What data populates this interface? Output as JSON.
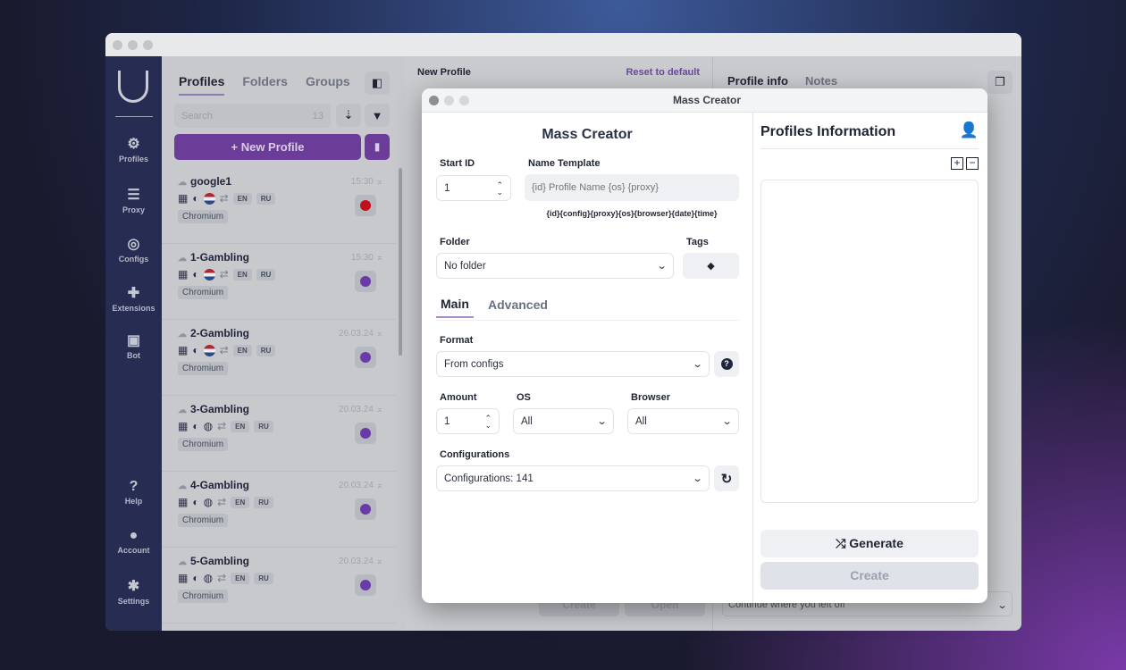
{
  "sidebar": {
    "items": [
      {
        "label": "Profiles",
        "icon": "users-gear-icon"
      },
      {
        "label": "Proxy",
        "icon": "server-icon"
      },
      {
        "label": "Configs",
        "icon": "fingerprint-icon"
      },
      {
        "label": "Extensions",
        "icon": "puzzle-icon"
      },
      {
        "label": "Bot",
        "icon": "robot-icon"
      }
    ],
    "bottom": [
      {
        "label": "Help",
        "icon": "question-icon"
      },
      {
        "label": "Account",
        "icon": "user-icon"
      },
      {
        "label": "Settings",
        "icon": "gear-icon"
      }
    ]
  },
  "list": {
    "tabs": [
      "Profiles",
      "Folders",
      "Groups"
    ],
    "search_placeholder": "Search",
    "count": "13",
    "new_profile": "+ New Profile",
    "profiles": [
      {
        "name": "google1",
        "date": "15:30",
        "langs": [
          "EN",
          "RU"
        ],
        "browser": "Chromium",
        "geo": "flag",
        "status": "running"
      },
      {
        "name": "1-Gambling",
        "date": "15:30",
        "langs": [
          "EN",
          "RU"
        ],
        "browser": "Chromium",
        "geo": "flag",
        "status": "stopped"
      },
      {
        "name": "2-Gambling",
        "date": "26.03.24",
        "langs": [
          "EN",
          "RU"
        ],
        "browser": "Chromium",
        "geo": "flag",
        "status": "stopped"
      },
      {
        "name": "3-Gambling",
        "date": "20.03.24",
        "langs": [
          "EN",
          "RU"
        ],
        "browser": "Chromium",
        "geo": "globe",
        "status": "stopped"
      },
      {
        "name": "4-Gambling",
        "date": "20.03.24",
        "langs": [
          "EN",
          "RU"
        ],
        "browser": "Chromium",
        "geo": "globe",
        "status": "stopped"
      },
      {
        "name": "5-Gambling",
        "date": "20.03.24",
        "langs": [
          "EN",
          "RU"
        ],
        "browser": "Chromium",
        "geo": "globe",
        "status": "stopped"
      }
    ]
  },
  "middle": {
    "title": "New Profile",
    "reset": "Reset to default",
    "create": "Create",
    "open": "Open"
  },
  "right": {
    "tabs": [
      "Profile info",
      "Notes"
    ],
    "startup": "Continue where you left off"
  },
  "modal": {
    "window_title": "Mass Creator",
    "heading": "Mass Creator",
    "start_id_label": "Start ID",
    "start_id": "1",
    "name_template_label": "Name Template",
    "name_template_placeholder": "{id} Profile Name {os} {proxy}",
    "variables": "{id}{config}{proxy}{os}{browser}{date}{time}",
    "folder_label": "Folder",
    "folder": "No folder",
    "tags_label": "Tags",
    "tabs": [
      "Main",
      "Advanced"
    ],
    "format_label": "Format",
    "format": "From configs",
    "amount_label": "Amount",
    "amount": "1",
    "os_label": "OS",
    "os": "All",
    "browser_label": "Browser",
    "browser": "All",
    "configs_label": "Configurations",
    "configs": "Configurations: 141",
    "info_title": "Profiles Information",
    "generate": "Generate",
    "create": "Create"
  },
  "colors": {
    "accent": "#7c4dbf",
    "sidebar": "#272c52",
    "stop": "#c0101a"
  }
}
